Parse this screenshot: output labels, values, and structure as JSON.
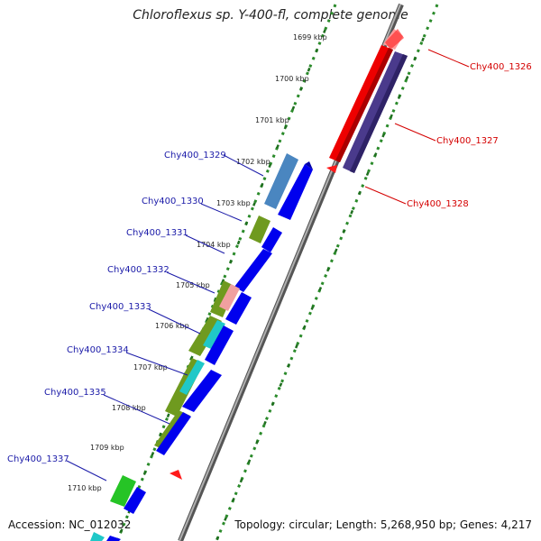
{
  "title": "Chloroflexus sp. Y-400-fl, complete genome",
  "accession_label": "Accession: NC_012032",
  "summary_label": "Topology: circular; Length: 5,268,950 bp; Genes: 4,217",
  "colors": {
    "forward_gene_label": "#1a1aa8",
    "reverse_gene_label": "#d40000",
    "cds_forward": "#0000ee",
    "cds_reverse": "#ff1a1a",
    "cds_reverse_dark": "#4a3a8c",
    "backbone": "#888888",
    "tick": "#2a8a2a"
  },
  "kbp_ticks": [
    {
      "label": "1699 kbp"
    },
    {
      "label": "1700 kbp"
    },
    {
      "label": "1701 kbp"
    },
    {
      "label": "1702 kbp"
    },
    {
      "label": "1703 kbp"
    },
    {
      "label": "1704 kbp"
    },
    {
      "label": "1705 kbp"
    },
    {
      "label": "1706 kbp"
    },
    {
      "label": "1707 kbp"
    },
    {
      "label": "1708 kbp"
    },
    {
      "label": "1709 kbp"
    },
    {
      "label": "1710 kbp"
    }
  ],
  "forward_genes": [
    {
      "label": "Chy400_1329"
    },
    {
      "label": "Chy400_1330"
    },
    {
      "label": "Chy400_1331"
    },
    {
      "label": "Chy400_1332"
    },
    {
      "label": "Chy400_1333"
    },
    {
      "label": "Chy400_1334"
    },
    {
      "label": "Chy400_1335"
    },
    {
      "label": "Chy400_1337"
    }
  ],
  "reverse_genes": [
    {
      "label": "Chy400_1326"
    },
    {
      "label": "Chy400_1327"
    },
    {
      "label": "Chy400_1328"
    }
  ]
}
